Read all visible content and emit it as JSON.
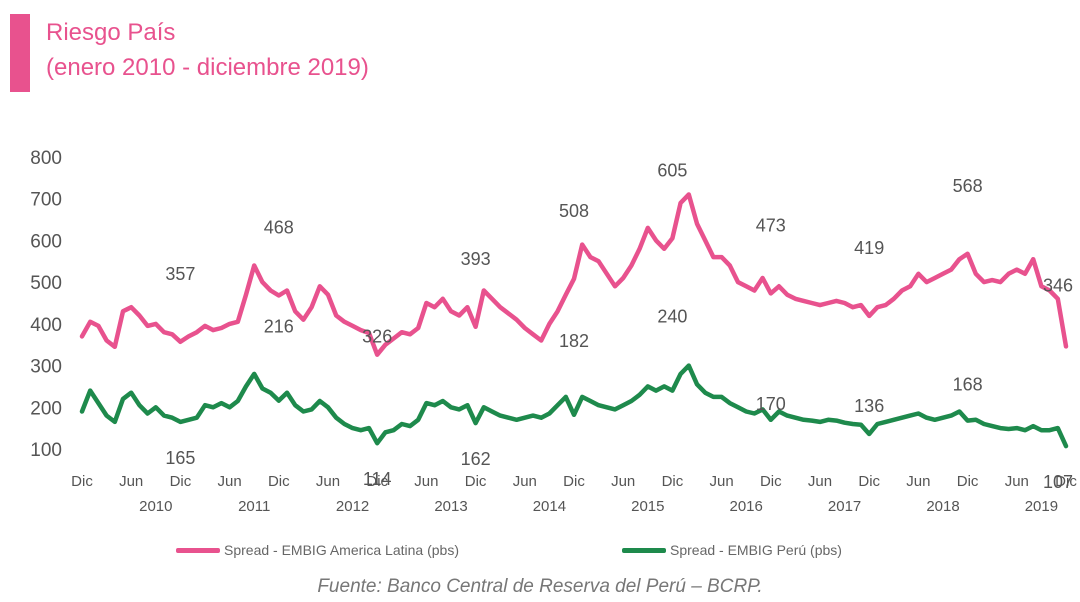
{
  "header": {
    "title": "Riesgo País",
    "subtitle": "(enero 2010 - diciembre 2019)"
  },
  "colors": {
    "accent": "#e8528e",
    "america_latina": "#e8528e",
    "peru": "#1e8a4c"
  },
  "source": "Fuente: Banco Central de Reserva del Perú – BCRP.",
  "chart_data": {
    "type": "line",
    "title": "Riesgo País",
    "subtitle": "(enero 2010 - diciembre 2019)",
    "xlabel": "",
    "ylabel": "",
    "ylim": [
      100,
      800
    ],
    "yticks": [
      100,
      200,
      300,
      400,
      500,
      600,
      700,
      800
    ],
    "x_start": "2009-12",
    "x_end": "2019-12",
    "xtick_labels": [
      "Dic",
      "Jun",
      "Dic",
      "Jun",
      "Dic",
      "Jun",
      "Dic",
      "Jun",
      "Dic",
      "Jun",
      "Dic",
      "Jun",
      "Dic",
      "Jun",
      "Dic",
      "Jun",
      "Dic",
      "Jun",
      "Dic",
      "Jun",
      "Dic"
    ],
    "year_labels": [
      "2010",
      "2011",
      "2012",
      "2013",
      "2014",
      "2015",
      "2016",
      "2017",
      "2018",
      "2019"
    ],
    "grid": false,
    "legend": "bottom",
    "series": [
      {
        "name": "Spread - EMBIG America Latina (pbs)",
        "points": [
          [
            "2009-12",
            370
          ],
          [
            "2010-01",
            405
          ],
          [
            "2010-02",
            395
          ],
          [
            "2010-03",
            360
          ],
          [
            "2010-04",
            345
          ],
          [
            "2010-05",
            430
          ],
          [
            "2010-06",
            440
          ],
          [
            "2010-07",
            420
          ],
          [
            "2010-08",
            395
          ],
          [
            "2010-09",
            400
          ],
          [
            "2010-10",
            380
          ],
          [
            "2010-11",
            375
          ],
          [
            "2010-12",
            357
          ],
          [
            "2011-01",
            370
          ],
          [
            "2011-02",
            380
          ],
          [
            "2011-03",
            395
          ],
          [
            "2011-04",
            385
          ],
          [
            "2011-05",
            390
          ],
          [
            "2011-06",
            400
          ],
          [
            "2011-07",
            405
          ],
          [
            "2011-08",
            470
          ],
          [
            "2011-09",
            540
          ],
          [
            "2011-10",
            500
          ],
          [
            "2011-11",
            480
          ],
          [
            "2011-12",
            468
          ],
          [
            "2012-01",
            480
          ],
          [
            "2012-02",
            430
          ],
          [
            "2012-03",
            410
          ],
          [
            "2012-04",
            440
          ],
          [
            "2012-05",
            490
          ],
          [
            "2012-06",
            470
          ],
          [
            "2012-07",
            420
          ],
          [
            "2012-08",
            405
          ],
          [
            "2012-09",
            395
          ],
          [
            "2012-10",
            385
          ],
          [
            "2012-11",
            378
          ],
          [
            "2012-12",
            326
          ],
          [
            "2013-01",
            350
          ],
          [
            "2013-02",
            365
          ],
          [
            "2013-03",
            380
          ],
          [
            "2013-04",
            375
          ],
          [
            "2013-05",
            390
          ],
          [
            "2013-06",
            450
          ],
          [
            "2013-07",
            440
          ],
          [
            "2013-08",
            460
          ],
          [
            "2013-09",
            430
          ],
          [
            "2013-10",
            420
          ],
          [
            "2013-11",
            440
          ],
          [
            "2013-12",
            393
          ],
          [
            "2014-01",
            480
          ],
          [
            "2014-02",
            460
          ],
          [
            "2014-03",
            440
          ],
          [
            "2014-04",
            425
          ],
          [
            "2014-05",
            410
          ],
          [
            "2014-06",
            390
          ],
          [
            "2014-07",
            375
          ],
          [
            "2014-08",
            360
          ],
          [
            "2014-09",
            400
          ],
          [
            "2014-10",
            430
          ],
          [
            "2014-11",
            470
          ],
          [
            "2014-12",
            508
          ],
          [
            "2015-01",
            590
          ],
          [
            "2015-02",
            560
          ],
          [
            "2015-03",
            550
          ],
          [
            "2015-04",
            520
          ],
          [
            "2015-05",
            490
          ],
          [
            "2015-06",
            510
          ],
          [
            "2015-07",
            540
          ],
          [
            "2015-08",
            580
          ],
          [
            "2015-09",
            630
          ],
          [
            "2015-10",
            600
          ],
          [
            "2015-11",
            580
          ],
          [
            "2015-12",
            605
          ],
          [
            "2016-01",
            690
          ],
          [
            "2016-02",
            710
          ],
          [
            "2016-03",
            640
          ],
          [
            "2016-04",
            600
          ],
          [
            "2016-05",
            560
          ],
          [
            "2016-06",
            560
          ],
          [
            "2016-07",
            540
          ],
          [
            "2016-08",
            500
          ],
          [
            "2016-09",
            490
          ],
          [
            "2016-10",
            480
          ],
          [
            "2016-11",
            510
          ],
          [
            "2016-12",
            473
          ],
          [
            "2017-01",
            490
          ],
          [
            "2017-02",
            470
          ],
          [
            "2017-03",
            460
          ],
          [
            "2017-04",
            455
          ],
          [
            "2017-05",
            450
          ],
          [
            "2017-06",
            445
          ],
          [
            "2017-07",
            450
          ],
          [
            "2017-08",
            455
          ],
          [
            "2017-09",
            450
          ],
          [
            "2017-10",
            440
          ],
          [
            "2017-11",
            445
          ],
          [
            "2017-12",
            419
          ],
          [
            "2018-01",
            440
          ],
          [
            "2018-02",
            445
          ],
          [
            "2018-03",
            460
          ],
          [
            "2018-04",
            480
          ],
          [
            "2018-05",
            490
          ],
          [
            "2018-06",
            520
          ],
          [
            "2018-07",
            500
          ],
          [
            "2018-08",
            510
          ],
          [
            "2018-09",
            520
          ],
          [
            "2018-10",
            530
          ],
          [
            "2018-11",
            555
          ],
          [
            "2018-12",
            568
          ],
          [
            "2019-01",
            520
          ],
          [
            "2019-02",
            500
          ],
          [
            "2019-03",
            505
          ],
          [
            "2019-04",
            500
          ],
          [
            "2019-05",
            520
          ],
          [
            "2019-06",
            530
          ],
          [
            "2019-07",
            520
          ],
          [
            "2019-08",
            555
          ],
          [
            "2019-09",
            490
          ],
          [
            "2019-10",
            480
          ],
          [
            "2019-11",
            460
          ],
          [
            "2019-12",
            346
          ]
        ],
        "annotations": [
          {
            "x": "2010-12",
            "y": 357,
            "label": "357"
          },
          {
            "x": "2011-12",
            "y": 468,
            "label": "468"
          },
          {
            "x": "2012-12",
            "y": 326,
            "label": "326"
          },
          {
            "x": "2013-12",
            "y": 393,
            "label": "393"
          },
          {
            "x": "2014-12",
            "y": 508,
            "label": "508"
          },
          {
            "x": "2015-12",
            "y": 605,
            "label": "605"
          },
          {
            "x": "2016-12",
            "y": 473,
            "label": "473"
          },
          {
            "x": "2017-12",
            "y": 419,
            "label": "419"
          },
          {
            "x": "2018-12",
            "y": 568,
            "label": "568"
          },
          {
            "x": "2019-12",
            "y": 346,
            "label": "346"
          }
        ]
      },
      {
        "name": "Spread - EMBIG Perú (pbs)",
        "points": [
          [
            "2009-12",
            190
          ],
          [
            "2010-01",
            240
          ],
          [
            "2010-02",
            210
          ],
          [
            "2010-03",
            180
          ],
          [
            "2010-04",
            165
          ],
          [
            "2010-05",
            220
          ],
          [
            "2010-06",
            235
          ],
          [
            "2010-07",
            205
          ],
          [
            "2010-08",
            185
          ],
          [
            "2010-09",
            200
          ],
          [
            "2010-10",
            180
          ],
          [
            "2010-11",
            175
          ],
          [
            "2010-12",
            165
          ],
          [
            "2011-01",
            170
          ],
          [
            "2011-02",
            175
          ],
          [
            "2011-03",
            205
          ],
          [
            "2011-04",
            200
          ],
          [
            "2011-05",
            210
          ],
          [
            "2011-06",
            200
          ],
          [
            "2011-07",
            215
          ],
          [
            "2011-08",
            250
          ],
          [
            "2011-09",
            280
          ],
          [
            "2011-10",
            245
          ],
          [
            "2011-11",
            235
          ],
          [
            "2011-12",
            216
          ],
          [
            "2012-01",
            235
          ],
          [
            "2012-02",
            205
          ],
          [
            "2012-03",
            190
          ],
          [
            "2012-04",
            195
          ],
          [
            "2012-05",
            215
          ],
          [
            "2012-06",
            200
          ],
          [
            "2012-07",
            175
          ],
          [
            "2012-08",
            160
          ],
          [
            "2012-09",
            150
          ],
          [
            "2012-10",
            145
          ],
          [
            "2012-11",
            150
          ],
          [
            "2012-12",
            114
          ],
          [
            "2013-01",
            140
          ],
          [
            "2013-02",
            145
          ],
          [
            "2013-03",
            160
          ],
          [
            "2013-04",
            155
          ],
          [
            "2013-05",
            170
          ],
          [
            "2013-06",
            210
          ],
          [
            "2013-07",
            205
          ],
          [
            "2013-08",
            215
          ],
          [
            "2013-09",
            200
          ],
          [
            "2013-10",
            195
          ],
          [
            "2013-11",
            205
          ],
          [
            "2013-12",
            162
          ],
          [
            "2014-01",
            200
          ],
          [
            "2014-02",
            190
          ],
          [
            "2014-03",
            180
          ],
          [
            "2014-04",
            175
          ],
          [
            "2014-05",
            170
          ],
          [
            "2014-06",
            175
          ],
          [
            "2014-07",
            180
          ],
          [
            "2014-08",
            175
          ],
          [
            "2014-09",
            185
          ],
          [
            "2014-10",
            205
          ],
          [
            "2014-11",
            225
          ],
          [
            "2014-12",
            182
          ],
          [
            "2015-01",
            225
          ],
          [
            "2015-02",
            215
          ],
          [
            "2015-03",
            205
          ],
          [
            "2015-04",
            200
          ],
          [
            "2015-05",
            195
          ],
          [
            "2015-06",
            205
          ],
          [
            "2015-07",
            215
          ],
          [
            "2015-08",
            230
          ],
          [
            "2015-09",
            250
          ],
          [
            "2015-10",
            240
          ],
          [
            "2015-11",
            250
          ],
          [
            "2015-12",
            240
          ],
          [
            "2016-01",
            280
          ],
          [
            "2016-02",
            300
          ],
          [
            "2016-03",
            255
          ],
          [
            "2016-04",
            235
          ],
          [
            "2016-05",
            225
          ],
          [
            "2016-06",
            225
          ],
          [
            "2016-07",
            210
          ],
          [
            "2016-08",
            200
          ],
          [
            "2016-09",
            190
          ],
          [
            "2016-10",
            185
          ],
          [
            "2016-11",
            195
          ],
          [
            "2016-12",
            170
          ],
          [
            "2017-01",
            190
          ],
          [
            "2017-02",
            180
          ],
          [
            "2017-03",
            175
          ],
          [
            "2017-04",
            170
          ],
          [
            "2017-05",
            168
          ],
          [
            "2017-06",
            165
          ],
          [
            "2017-07",
            170
          ],
          [
            "2017-08",
            168
          ],
          [
            "2017-09",
            163
          ],
          [
            "2017-10",
            160
          ],
          [
            "2017-11",
            158
          ],
          [
            "2017-12",
            136
          ],
          [
            "2018-01",
            160
          ],
          [
            "2018-02",
            165
          ],
          [
            "2018-03",
            170
          ],
          [
            "2018-04",
            175
          ],
          [
            "2018-05",
            180
          ],
          [
            "2018-06",
            185
          ],
          [
            "2018-07",
            175
          ],
          [
            "2018-08",
            170
          ],
          [
            "2018-09",
            175
          ],
          [
            "2018-10",
            180
          ],
          [
            "2018-11",
            190
          ],
          [
            "2018-12",
            168
          ],
          [
            "2019-01",
            170
          ],
          [
            "2019-02",
            160
          ],
          [
            "2019-03",
            155
          ],
          [
            "2019-04",
            150
          ],
          [
            "2019-05",
            148
          ],
          [
            "2019-06",
            150
          ],
          [
            "2019-07",
            145
          ],
          [
            "2019-08",
            155
          ],
          [
            "2019-09",
            145
          ],
          [
            "2019-10",
            145
          ],
          [
            "2019-11",
            150
          ],
          [
            "2019-12",
            107
          ]
        ],
        "annotations": [
          {
            "x": "2010-12",
            "y": 165,
            "label": "165"
          },
          {
            "x": "2011-12",
            "y": 216,
            "label": "216"
          },
          {
            "x": "2012-12",
            "y": 114,
            "label": "114"
          },
          {
            "x": "2013-12",
            "y": 162,
            "label": "162"
          },
          {
            "x": "2014-12",
            "y": 182,
            "label": "182"
          },
          {
            "x": "2015-12",
            "y": 240,
            "label": "240"
          },
          {
            "x": "2016-12",
            "y": 170,
            "label": "170"
          },
          {
            "x": "2017-12",
            "y": 136,
            "label": "136"
          },
          {
            "x": "2018-12",
            "y": 168,
            "label": "168"
          },
          {
            "x": "2019-12",
            "y": 107,
            "label": "107"
          }
        ]
      }
    ]
  }
}
